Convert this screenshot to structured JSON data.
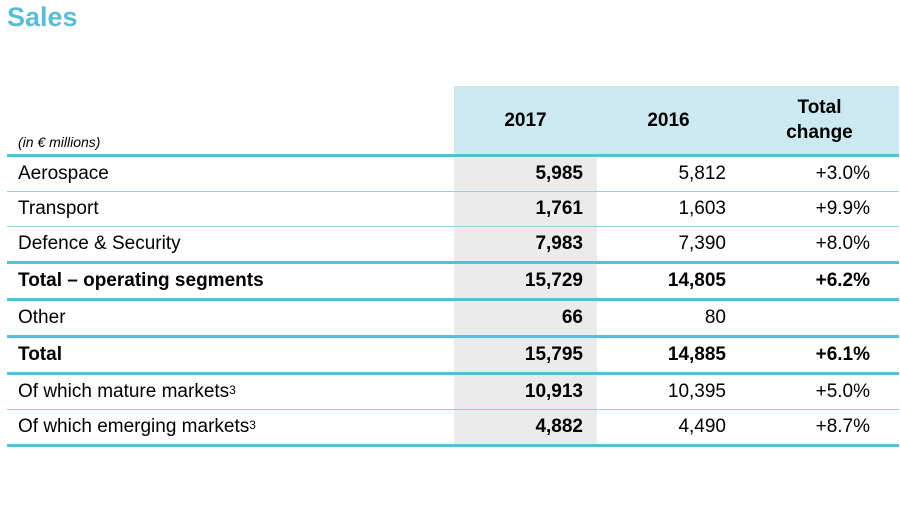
{
  "title": "Sales",
  "unit_note": "(in € millions)",
  "headers": {
    "col_2017": "2017",
    "col_2016": "2016",
    "col_change_line1": "Total",
    "col_change_line2": "change"
  },
  "rows": [
    {
      "label": "Aerospace",
      "sup": "",
      "v2017": "5,985",
      "v2016": "5,812",
      "change": "+3.0%"
    },
    {
      "label": "Transport",
      "sup": "",
      "v2017": "1,761",
      "v2016": "1,603",
      "change": "+9.9%"
    },
    {
      "label": "Defence & Security",
      "sup": "",
      "v2017": "7,983",
      "v2016": "7,390",
      "change": "+8.0%"
    },
    {
      "label": "Total – operating segments",
      "sup": "",
      "v2017": "15,729",
      "v2016": "14,805",
      "change": "+6.2%"
    },
    {
      "label": "Other",
      "sup": "",
      "v2017": "66",
      "v2016": "80",
      "change": ""
    },
    {
      "label": "Total",
      "sup": "",
      "v2017": "15,795",
      "v2016": "14,885",
      "change": "+6.1%"
    },
    {
      "label": "Of which mature markets",
      "sup": "3",
      "v2017": "10,913",
      "v2016": "10,395",
      "change": "+5.0%"
    },
    {
      "label": "Of which emerging markets",
      "sup": "3",
      "v2017": "4,882",
      "v2016": "4,490",
      "change": "+8.7%"
    }
  ],
  "colors": {
    "accent": "#5bbcd6",
    "header_band": "#cce9f1",
    "shade_2017": "#ebebeb"
  }
}
